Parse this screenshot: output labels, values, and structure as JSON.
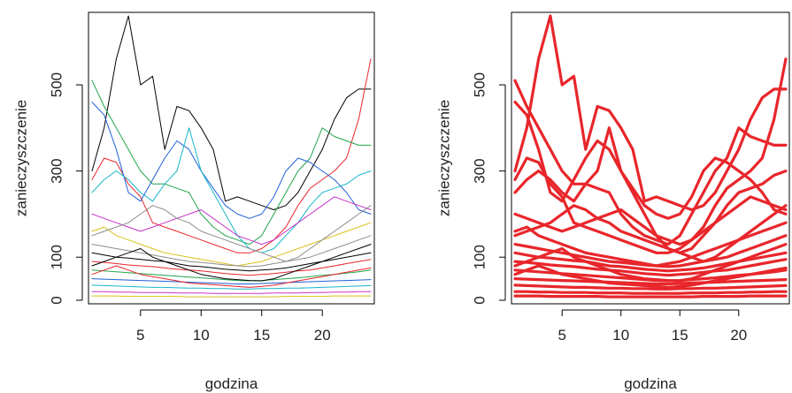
{
  "chart_data": [
    {
      "type": "line",
      "title": "",
      "xlabel": "godzina",
      "ylabel": "zanieczyszczenie",
      "xlim": [
        1,
        24
      ],
      "ylim": [
        0,
        660
      ],
      "x_ticks": [
        5,
        10,
        15,
        20
      ],
      "y_ticks": [
        0,
        100,
        300,
        500
      ],
      "grid": false,
      "legend": "none",
      "palette": "multicolor",
      "colors": [
        "#000000",
        "#e8262b",
        "#21a34a",
        "#1f5fd6",
        "#19b6c8",
        "#c533c8",
        "#d8c21a",
        "#8c8c8c"
      ],
      "line_weight": "thin",
      "x": [
        1,
        2,
        3,
        4,
        5,
        6,
        7,
        8,
        9,
        10,
        11,
        12,
        13,
        14,
        15,
        16,
        17,
        18,
        19,
        20,
        21,
        22,
        23,
        24
      ],
      "series": [
        {
          "values": [
            300,
            400,
            560,
            660,
            500,
            520,
            350,
            450,
            440,
            400,
            350,
            230,
            240,
            230,
            220,
            210,
            220,
            250,
            300,
            350,
            420,
            470,
            490,
            490
          ]
        },
        {
          "values": [
            280,
            330,
            320,
            270,
            240,
            180,
            170,
            160,
            150,
            140,
            130,
            120,
            110,
            110,
            120,
            140,
            170,
            220,
            260,
            280,
            300,
            330,
            420,
            560
          ]
        },
        {
          "values": [
            510,
            450,
            400,
            350,
            300,
            270,
            270,
            260,
            250,
            200,
            170,
            150,
            140,
            130,
            150,
            200,
            250,
            300,
            330,
            400,
            380,
            370,
            360,
            360
          ]
        },
        {
          "values": [
            460,
            430,
            350,
            250,
            230,
            280,
            330,
            370,
            350,
            300,
            260,
            220,
            200,
            190,
            200,
            240,
            300,
            330,
            320,
            300,
            280,
            250,
            210,
            200
          ]
        },
        {
          "values": [
            250,
            280,
            300,
            280,
            250,
            230,
            270,
            300,
            400,
            300,
            250,
            200,
            150,
            120,
            110,
            120,
            150,
            180,
            220,
            250,
            260,
            270,
            290,
            300
          ]
        },
        {
          "values": [
            200,
            190,
            180,
            170,
            160,
            170,
            180,
            190,
            200,
            210,
            190,
            170,
            150,
            140,
            130,
            140,
            160,
            180,
            200,
            220,
            240,
            230,
            220,
            210
          ]
        },
        {
          "values": [
            160,
            170,
            150,
            140,
            130,
            120,
            110,
            105,
            100,
            95,
            90,
            85,
            80,
            85,
            90,
            100,
            110,
            120,
            130,
            140,
            150,
            160,
            170,
            180
          ]
        },
        {
          "values": [
            130,
            125,
            120,
            115,
            110,
            105,
            100,
            95,
            90,
            88,
            85,
            82,
            80,
            78,
            80,
            85,
            90,
            95,
            100,
            110,
            120,
            130,
            140,
            150
          ]
        },
        {
          "values": [
            110,
            105,
            100,
            98,
            95,
            92,
            90,
            85,
            80,
            78,
            75,
            72,
            70,
            68,
            70,
            72,
            75,
            80,
            85,
            90,
            95,
            100,
            105,
            110
          ]
        },
        {
          "values": [
            90,
            88,
            85,
            82,
            80,
            78,
            75,
            72,
            70,
            68,
            65,
            62,
            60,
            58,
            60,
            62,
            65,
            68,
            70,
            75,
            80,
            85,
            90,
            95
          ]
        },
        {
          "values": [
            70,
            68,
            66,
            64,
            62,
            60,
            58,
            56,
            54,
            52,
            50,
            48,
            46,
            45,
            46,
            48,
            50,
            52,
            55,
            58,
            60,
            63,
            66,
            70
          ]
        },
        {
          "values": [
            50,
            49,
            48,
            47,
            46,
            45,
            44,
            43,
            42,
            41,
            40,
            39,
            38,
            38,
            39,
            40,
            41,
            42,
            43,
            44,
            45,
            46,
            47,
            48
          ]
        },
        {
          "values": [
            35,
            34,
            33,
            32,
            31,
            30,
            30,
            29,
            28,
            28,
            27,
            27,
            26,
            26,
            27,
            27,
            28,
            28,
            29,
            30,
            31,
            32,
            33,
            34
          ]
        },
        {
          "values": [
            20,
            20,
            19,
            19,
            18,
            18,
            18,
            17,
            17,
            17,
            16,
            16,
            16,
            16,
            16,
            17,
            17,
            17,
            18,
            18,
            19,
            19,
            20,
            20
          ]
        },
        {
          "values": [
            10,
            10,
            10,
            9,
            9,
            9,
            9,
            9,
            8,
            8,
            8,
            8,
            8,
            8,
            8,
            8,
            9,
            9,
            9,
            9,
            10,
            10,
            10,
            10
          ]
        },
        {
          "values": [
            150,
            160,
            170,
            180,
            200,
            220,
            210,
            190,
            180,
            160,
            150,
            140,
            130,
            120,
            110,
            100,
            90,
            100,
            120,
            140,
            160,
            180,
            200,
            220
          ]
        },
        {
          "values": [
            80,
            90,
            100,
            110,
            120,
            100,
            90,
            80,
            70,
            60,
            55,
            50,
            48,
            46,
            45,
            50,
            60,
            70,
            80,
            90,
            100,
            110,
            120,
            130
          ]
        },
        {
          "values": [
            60,
            70,
            80,
            70,
            60,
            55,
            50,
            45,
            40,
            38,
            36,
            34,
            32,
            30,
            32,
            35,
            40,
            45,
            50,
            55,
            60,
            65,
            70,
            75
          ]
        }
      ]
    },
    {
      "type": "line",
      "title": "",
      "xlabel": "godzina",
      "ylabel": "zanieczyszczenie",
      "xlim": [
        1,
        24
      ],
      "ylim": [
        0,
        660
      ],
      "x_ticks": [
        5,
        10,
        15,
        20
      ],
      "y_ticks": [
        0,
        100,
        300,
        500
      ],
      "grid": false,
      "legend": "none",
      "palette": "single",
      "colors": [
        "#e8262b"
      ],
      "line_weight": "thick",
      "x": [
        1,
        2,
        3,
        4,
        5,
        6,
        7,
        8,
        9,
        10,
        11,
        12,
        13,
        14,
        15,
        16,
        17,
        18,
        19,
        20,
        21,
        22,
        23,
        24
      ],
      "series": [
        {
          "values": [
            300,
            400,
            560,
            660,
            500,
            520,
            350,
            450,
            440,
            400,
            350,
            230,
            240,
            230,
            220,
            210,
            220,
            250,
            300,
            350,
            420,
            470,
            490,
            490
          ]
        },
        {
          "values": [
            280,
            330,
            320,
            270,
            240,
            180,
            170,
            160,
            150,
            140,
            130,
            120,
            110,
            110,
            120,
            140,
            170,
            220,
            260,
            280,
            300,
            330,
            420,
            560
          ]
        },
        {
          "values": [
            510,
            450,
            400,
            350,
            300,
            270,
            270,
            260,
            250,
            200,
            170,
            150,
            140,
            130,
            150,
            200,
            250,
            300,
            330,
            400,
            380,
            370,
            360,
            360
          ]
        },
        {
          "values": [
            460,
            430,
            350,
            250,
            230,
            280,
            330,
            370,
            350,
            300,
            260,
            220,
            200,
            190,
            200,
            240,
            300,
            330,
            320,
            300,
            280,
            250,
            210,
            200
          ]
        },
        {
          "values": [
            250,
            280,
            300,
            280,
            250,
            230,
            270,
            300,
            400,
            300,
            250,
            200,
            150,
            120,
            110,
            120,
            150,
            180,
            220,
            250,
            260,
            270,
            290,
            300
          ]
        },
        {
          "values": [
            200,
            190,
            180,
            170,
            160,
            170,
            180,
            190,
            200,
            210,
            190,
            170,
            150,
            140,
            130,
            140,
            160,
            180,
            200,
            220,
            240,
            230,
            220,
            210
          ]
        },
        {
          "values": [
            160,
            170,
            150,
            140,
            130,
            120,
            110,
            105,
            100,
            95,
            90,
            85,
            80,
            85,
            90,
            100,
            110,
            120,
            130,
            140,
            150,
            160,
            170,
            180
          ]
        },
        {
          "values": [
            130,
            125,
            120,
            115,
            110,
            105,
            100,
            95,
            90,
            88,
            85,
            82,
            80,
            78,
            80,
            85,
            90,
            95,
            100,
            110,
            120,
            130,
            140,
            150
          ]
        },
        {
          "values": [
            110,
            105,
            100,
            98,
            95,
            92,
            90,
            85,
            80,
            78,
            75,
            72,
            70,
            68,
            70,
            72,
            75,
            80,
            85,
            90,
            95,
            100,
            105,
            110
          ]
        },
        {
          "values": [
            90,
            88,
            85,
            82,
            80,
            78,
            75,
            72,
            70,
            68,
            65,
            62,
            60,
            58,
            60,
            62,
            65,
            68,
            70,
            75,
            80,
            85,
            90,
            95
          ]
        },
        {
          "values": [
            70,
            68,
            66,
            64,
            62,
            60,
            58,
            56,
            54,
            52,
            50,
            48,
            46,
            45,
            46,
            48,
            50,
            52,
            55,
            58,
            60,
            63,
            66,
            70
          ]
        },
        {
          "values": [
            50,
            49,
            48,
            47,
            46,
            45,
            44,
            43,
            42,
            41,
            40,
            39,
            38,
            38,
            39,
            40,
            41,
            42,
            43,
            44,
            45,
            46,
            47,
            48
          ]
        },
        {
          "values": [
            35,
            34,
            33,
            32,
            31,
            30,
            30,
            29,
            28,
            28,
            27,
            27,
            26,
            26,
            27,
            27,
            28,
            28,
            29,
            30,
            31,
            32,
            33,
            34
          ]
        },
        {
          "values": [
            20,
            20,
            19,
            19,
            18,
            18,
            18,
            17,
            17,
            17,
            16,
            16,
            16,
            16,
            16,
            17,
            17,
            17,
            18,
            18,
            19,
            19,
            20,
            20
          ]
        },
        {
          "values": [
            10,
            10,
            10,
            9,
            9,
            9,
            9,
            9,
            8,
            8,
            8,
            8,
            8,
            8,
            8,
            8,
            9,
            9,
            9,
            9,
            10,
            10,
            10,
            10
          ]
        },
        {
          "values": [
            150,
            160,
            170,
            180,
            200,
            220,
            210,
            190,
            180,
            160,
            150,
            140,
            130,
            120,
            110,
            100,
            90,
            100,
            120,
            140,
            160,
            180,
            200,
            220
          ]
        },
        {
          "values": [
            80,
            90,
            100,
            110,
            120,
            100,
            90,
            80,
            70,
            60,
            55,
            50,
            48,
            46,
            45,
            50,
            60,
            70,
            80,
            90,
            100,
            110,
            120,
            130
          ]
        },
        {
          "values": [
            60,
            70,
            80,
            70,
            60,
            55,
            50,
            45,
            40,
            38,
            36,
            34,
            32,
            30,
            32,
            35,
            40,
            45,
            50,
            55,
            60,
            65,
            70,
            75
          ]
        }
      ]
    }
  ]
}
